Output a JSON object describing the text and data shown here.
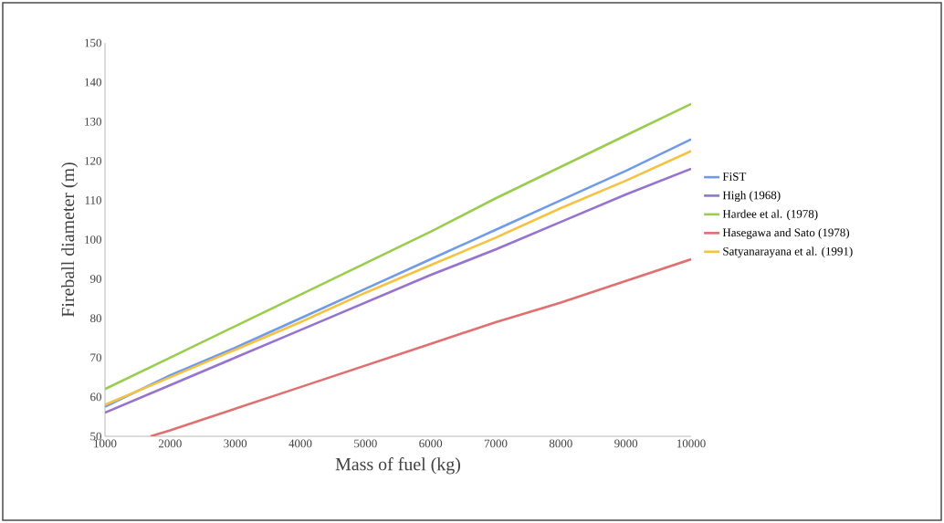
{
  "chart_data": {
    "type": "line",
    "xlabel": "Mass of fuel (kg)",
    "ylabel": "Fireball diameter (m)",
    "x": [
      1000,
      2000,
      3000,
      4000,
      5000,
      6000,
      7000,
      8000,
      9000,
      10000
    ],
    "xlim": [
      1000,
      10000
    ],
    "ylim": [
      50,
      150
    ],
    "xticks": [
      1000,
      2000,
      3000,
      4000,
      5000,
      6000,
      7000,
      8000,
      9000,
      10000
    ],
    "yticks": [
      50,
      60,
      70,
      80,
      90,
      100,
      110,
      120,
      130,
      140,
      150
    ],
    "grid": false,
    "legend": "right",
    "marker": "none",
    "line_style": "solid",
    "series": [
      {
        "name": "FiST",
        "color": "#6f9be8",
        "values": [
          57.5,
          65.5,
          72.5,
          80,
          87.5,
          95,
          102.5,
          110,
          117.5,
          125.5
        ]
      },
      {
        "name": "High (1968)",
        "color": "#9673cf",
        "values": [
          56,
          63,
          70,
          77,
          84,
          91,
          97.5,
          104.5,
          111.5,
          118
        ]
      },
      {
        "name": "Hardee et al. (1978)",
        "color": "#9acd4e",
        "values": [
          62,
          70,
          78,
          86,
          94,
          102,
          110.5,
          118.5,
          126.5,
          134.5
        ]
      },
      {
        "name": "Hasegawa and Sato (1978)",
        "color": "#e07070",
        "x": [
          1700,
          2000,
          3000,
          4000,
          5000,
          6000,
          7000,
          8000,
          9000,
          10000
        ],
        "values": [
          50,
          51.5,
          57,
          62.5,
          68,
          73.5,
          79,
          84,
          89.5,
          95
        ]
      },
      {
        "name": "Satyanarayana et al. (1991)",
        "color": "#f5c242",
        "values": [
          58,
          65,
          72,
          79,
          86.5,
          93.5,
          100.5,
          108,
          115,
          122.5
        ]
      }
    ]
  }
}
